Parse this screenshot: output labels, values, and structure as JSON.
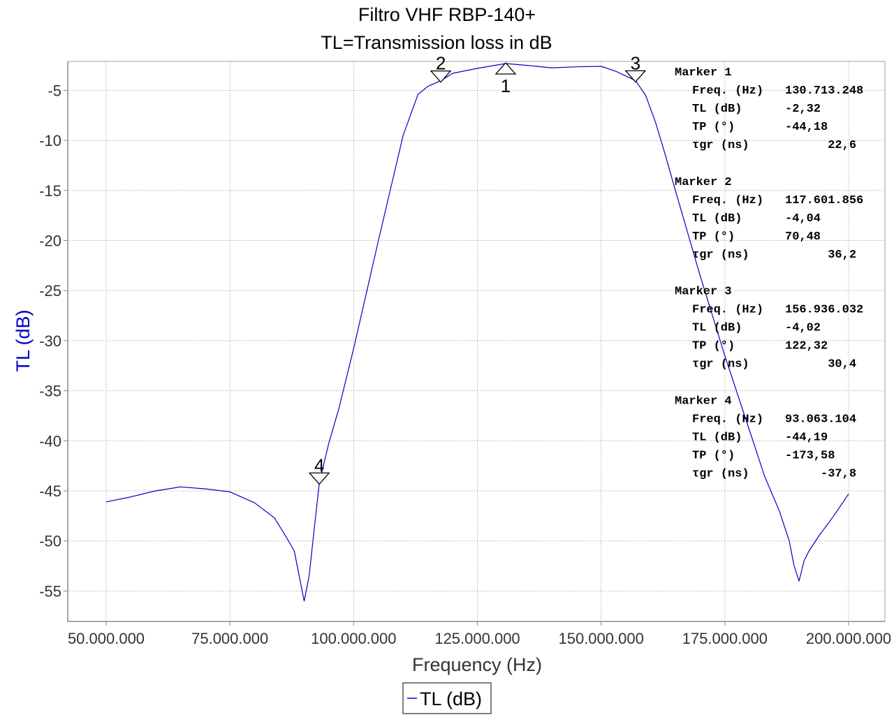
{
  "chart_data": {
    "type": "line",
    "title": "Filtro VHF RBP-140+",
    "subtitle": "TL=Transmission loss in dB",
    "xlabel": "Frequency (Hz)",
    "ylabel": "TL (dB)",
    "xlim": [
      40000000,
      205000000
    ],
    "ylim": [
      -58,
      -2.5
    ],
    "x_ticks": [
      50000000,
      75000000,
      100000000,
      125000000,
      150000000,
      175000000,
      200000000
    ],
    "x_tick_labels": [
      "50.000.000",
      "75.000.000",
      "100.000.000",
      "125.000.000",
      "150.000.000",
      "175.000.000",
      "200.000.000"
    ],
    "y_ticks": [
      -5,
      -10,
      -15,
      -20,
      -25,
      -30,
      -35,
      -40,
      -45,
      -50,
      -55
    ],
    "y_tick_labels": [
      "-5",
      "-10",
      "-15",
      "-20",
      "-25",
      "-30",
      "-35",
      "-40",
      "-45",
      "-50",
      "-55"
    ],
    "grid": true,
    "legend_position": "bottom-center",
    "series": [
      {
        "name": "TL (dB)",
        "color": "#0000c8",
        "x": [
          50000000,
          55000000,
          60000000,
          65000000,
          70000000,
          75000000,
          80000000,
          84000000,
          86000000,
          88000000,
          89000000,
          90000000,
          91000000,
          92000000,
          93063104,
          95000000,
          97000000,
          100000000,
          105000000,
          110000000,
          113000000,
          115000000,
          117601856,
          120000000,
          125000000,
          130713248,
          135000000,
          140000000,
          145000000,
          150000000,
          153000000,
          156936032,
          159000000,
          161000000,
          163000000,
          165000000,
          170000000,
          175000000,
          180000000,
          183000000,
          186000000,
          188000000,
          189000000,
          190000000,
          191000000,
          192000000,
          194000000,
          197000000,
          200000000
        ],
        "y": [
          -46.1,
          -45.6,
          -45.0,
          -44.6,
          -44.8,
          -45.1,
          -46.2,
          -47.7,
          -49.3,
          -51.0,
          -53.5,
          -56.0,
          -53.5,
          -49.0,
          -44.19,
          -40.2,
          -36.8,
          -30.8,
          -20.0,
          -9.5,
          -5.4,
          -4.6,
          -4.04,
          -3.3,
          -2.8,
          -2.32,
          -2.5,
          -2.75,
          -2.65,
          -2.6,
          -3.1,
          -4.02,
          -5.5,
          -8.2,
          -11.5,
          -15.0,
          -23.5,
          -31.5,
          -39.0,
          -43.5,
          -47.0,
          -50.0,
          -52.5,
          -54.0,
          -52.0,
          -51.0,
          -49.5,
          -47.5,
          -45.3
        ]
      }
    ],
    "markers": [
      {
        "id": "1",
        "label": "Marker 1",
        "x": 130713248,
        "y": -2.32,
        "shape": "triangle-up",
        "label_position": "below",
        "rows": [
          [
            "Freq. (Hz)",
            "130.713.248"
          ],
          [
            "TL (dB)",
            "-2,32"
          ],
          [
            "TP (°)",
            "-44,18"
          ],
          [
            "τgr (ns)",
            "22,6"
          ]
        ]
      },
      {
        "id": "2",
        "label": "Marker 2",
        "x": 117601856,
        "y": -4.04,
        "shape": "triangle-down",
        "label_position": "above",
        "rows": [
          [
            "Freq. (Hz)",
            "117.601.856"
          ],
          [
            "TL (dB)",
            "-4,04"
          ],
          [
            "TP (°)",
            "70,48"
          ],
          [
            "τgr (ns)",
            "36,2"
          ]
        ]
      },
      {
        "id": "3",
        "label": "Marker 3",
        "x": 156936032,
        "y": -4.02,
        "shape": "triangle-down",
        "label_position": "above",
        "rows": [
          [
            "Freq. (Hz)",
            "156.936.032"
          ],
          [
            "TL (dB)",
            "-4,02"
          ],
          [
            "TP (°)",
            "122,32"
          ],
          [
            "τgr (ns)",
            "30,4"
          ]
        ]
      },
      {
        "id": "4",
        "label": "Marker 4",
        "x": 93063104,
        "y": -44.19,
        "shape": "triangle-down",
        "label_position": "above",
        "rows": [
          [
            "Freq. (Hz)",
            "93.063.104"
          ],
          [
            "TL (dB)",
            "-44,19"
          ],
          [
            "TP (°)",
            "-173,58"
          ],
          [
            "τgr (ns)",
            "-37,8"
          ]
        ]
      }
    ]
  }
}
